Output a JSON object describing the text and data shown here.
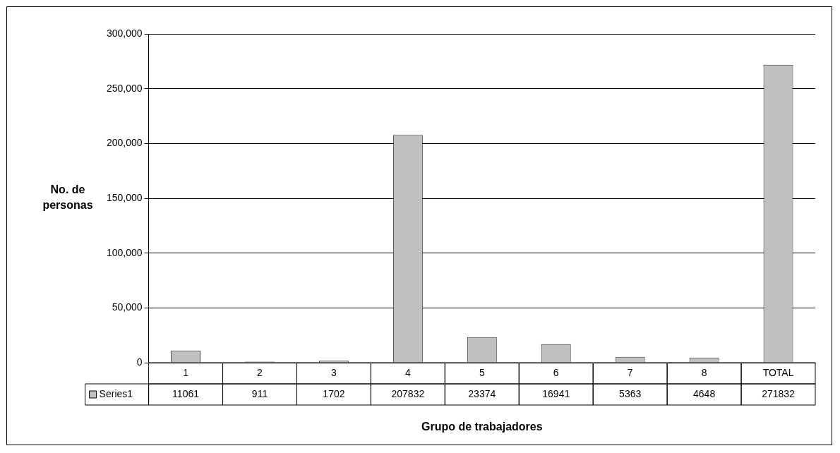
{
  "chart_data": {
    "type": "bar",
    "xlabel": "Grupo de trabajadores",
    "ylabel": "No. de personas",
    "categories": [
      "1",
      "2",
      "3",
      "4",
      "5",
      "6",
      "7",
      "8",
      "TOTAL"
    ],
    "series": [
      {
        "name": "Series1",
        "color": "#c0c0c0",
        "values": [
          11061,
          911,
          1702,
          207832,
          23374,
          16941,
          5363,
          4648,
          271832
        ]
      }
    ],
    "ylim": [
      0,
      300000
    ],
    "yticks": [
      0,
      {
        "value": 50000,
        "label": "50,000"
      },
      {
        "value": 100000,
        "label": "100,000"
      },
      {
        "value": 150000,
        "label": "150,000"
      },
      {
        "value": 200000,
        "label": "200,000"
      },
      {
        "value": 250000,
        "label": "250,000"
      },
      {
        "value": 300000,
        "label": "300,000"
      }
    ],
    "grid": "y",
    "legend": "bottom",
    "data_labels": true
  }
}
